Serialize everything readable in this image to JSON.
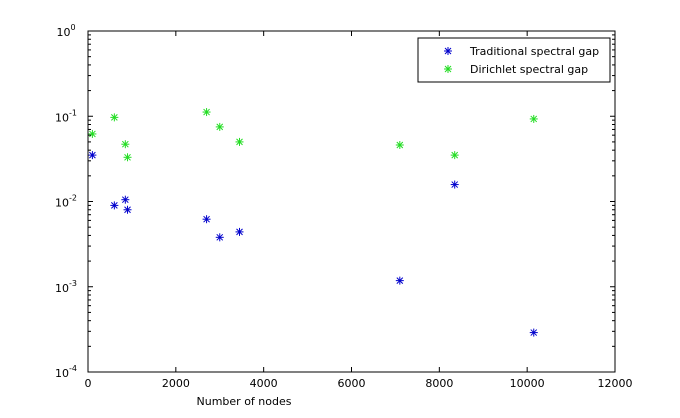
{
  "chart_data": {
    "type": "scatter",
    "title": "",
    "xlabel": "Number of nodes",
    "ylabel": "",
    "xlim": [
      0,
      12000
    ],
    "ylim": [
      0.0001,
      1
    ],
    "yscale": "log",
    "grid": false,
    "legend_position": "top-right",
    "x_ticks": [
      {
        "value": 0,
        "label": "0"
      },
      {
        "value": 2000,
        "label": "2000"
      },
      {
        "value": 4000,
        "label": "4000"
      },
      {
        "value": 6000,
        "label": "6000"
      },
      {
        "value": 8000,
        "label": "8000"
      },
      {
        "value": 10000,
        "label": "10000"
      },
      {
        "value": 12000,
        "label": "12000"
      }
    ],
    "y_ticks": [
      {
        "value": 1,
        "base": "10",
        "exp": "0"
      },
      {
        "value": 0.1,
        "base": "10",
        "exp": "-1"
      },
      {
        "value": 0.01,
        "base": "10",
        "exp": "-2"
      },
      {
        "value": 0.001,
        "base": "10",
        "exp": "-3"
      },
      {
        "value": 0.0001,
        "base": "10",
        "exp": "-4"
      }
    ],
    "series": [
      {
        "name": "Traditional spectral gap",
        "color": "#0000cc",
        "marker": "*",
        "x": [
          100,
          600,
          850,
          900,
          2700,
          3000,
          3450,
          7100,
          8350,
          10150
        ],
        "y": [
          0.035,
          0.009,
          0.0105,
          0.008,
          0.0062,
          0.0038,
          0.0044,
          0.00118,
          0.0158,
          0.00029
        ]
      },
      {
        "name": "Dirichlet spectral gap",
        "color": "#22dd22",
        "marker": "*",
        "x": [
          100,
          600,
          850,
          900,
          2700,
          3000,
          3450,
          7100,
          8350,
          10150
        ],
        "y": [
          0.062,
          0.097,
          0.047,
          0.033,
          0.112,
          0.075,
          0.05,
          0.046,
          0.035,
          0.093
        ]
      }
    ]
  }
}
